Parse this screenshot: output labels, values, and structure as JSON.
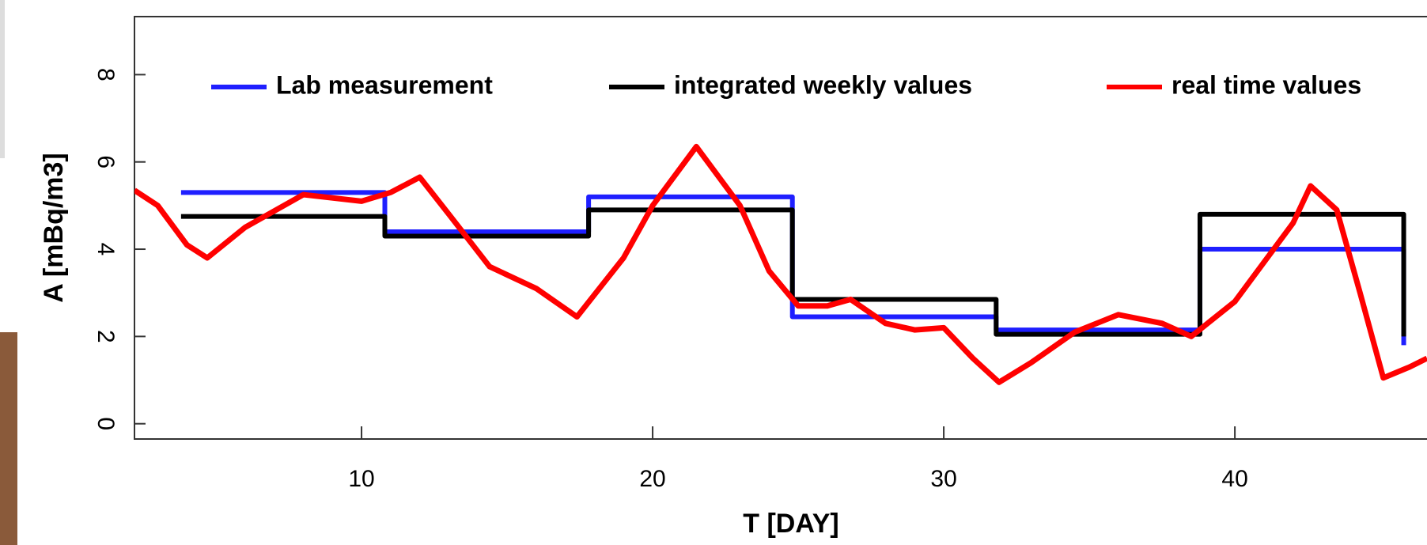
{
  "chart_data": {
    "type": "line",
    "x_label": "T [DAY]",
    "y_label": "A [mBq/m3]",
    "xlim": [
      2.2,
      46.6
    ],
    "ylim": [
      -0.35,
      9.33
    ],
    "xticks": [
      10,
      20,
      30,
      40
    ],
    "yticks": [
      0,
      2,
      4,
      6,
      8
    ],
    "legend": "top",
    "series": [
      {
        "name": "Lab measurement",
        "color": "#1f1fff",
        "x": [
          3.8,
          10.8,
          10.8,
          17.8,
          17.8,
          24.8,
          24.8,
          31.8,
          31.8,
          38.8,
          38.8,
          45.8,
          45.8
        ],
        "values": [
          5.3,
          5.3,
          4.4,
          4.4,
          5.2,
          5.2,
          2.45,
          2.45,
          2.15,
          2.15,
          4.0,
          4.0,
          1.8
        ]
      },
      {
        "name": "integrated weekly values",
        "color": "#000000",
        "x": [
          3.8,
          10.8,
          10.8,
          17.8,
          17.8,
          24.8,
          24.8,
          31.8,
          31.8,
          38.8,
          38.8,
          45.8,
          45.8
        ],
        "values": [
          4.75,
          4.75,
          4.3,
          4.3,
          4.9,
          4.9,
          2.85,
          2.85,
          2.05,
          2.05,
          4.8,
          4.8,
          2.0
        ]
      },
      {
        "name": "real time values",
        "color": "#ff0000",
        "x": [
          2.2,
          3.0,
          4.0,
          4.7,
          6.0,
          8.0,
          10.0,
          11.0,
          12.0,
          13.0,
          14.4,
          16.0,
          17.4,
          19.0,
          20.0,
          21.5,
          23.0,
          24.0,
          25.0,
          26.0,
          26.8,
          28.0,
          29.0,
          30.0,
          31.0,
          31.9,
          33.0,
          34.5,
          36.0,
          37.5,
          38.5,
          40.0,
          41.0,
          42.0,
          42.6,
          43.5,
          44.3,
          45.1,
          46.0,
          46.6
        ],
        "values": [
          5.35,
          5.0,
          4.1,
          3.8,
          4.5,
          5.25,
          5.1,
          5.3,
          5.65,
          4.8,
          3.6,
          3.1,
          2.45,
          3.8,
          5.0,
          6.35,
          5.0,
          3.5,
          2.7,
          2.7,
          2.85,
          2.3,
          2.15,
          2.2,
          1.5,
          0.95,
          1.4,
          2.1,
          2.5,
          2.3,
          2.0,
          2.8,
          3.7,
          4.6,
          5.45,
          4.9,
          3.0,
          1.05,
          1.3,
          1.5
        ]
      }
    ]
  }
}
